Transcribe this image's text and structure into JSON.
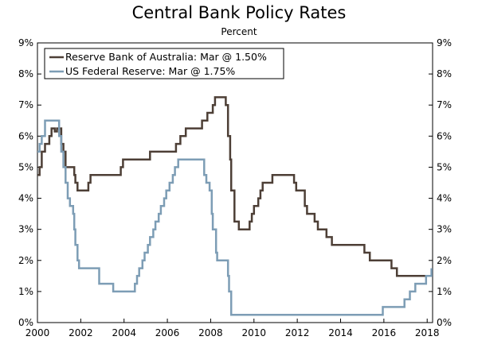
{
  "chart_data": {
    "type": "line",
    "title": "Central Bank Policy Rates",
    "subtitle": "Percent",
    "xlabel": "",
    "ylabel": "",
    "xlim": [
      2000,
      2018.25
    ],
    "ylim": [
      0,
      9
    ],
    "grid": false,
    "legend_position": "top-left",
    "y_ticks": [
      {
        "value": 0,
        "label": "0%"
      },
      {
        "value": 1,
        "label": "1%"
      },
      {
        "value": 2,
        "label": "2%"
      },
      {
        "value": 3,
        "label": "3%"
      },
      {
        "value": 4,
        "label": "4%"
      },
      {
        "value": 5,
        "label": "5%"
      },
      {
        "value": 6,
        "label": "6%"
      },
      {
        "value": 7,
        "label": "7%"
      },
      {
        "value": 8,
        "label": "8%"
      },
      {
        "value": 9,
        "label": "9%"
      }
    ],
    "x_ticks": [
      {
        "value": 2000,
        "label": "2000"
      },
      {
        "value": 2002,
        "label": "2002"
      },
      {
        "value": 2004,
        "label": "2004"
      },
      {
        "value": 2006,
        "label": "2006"
      },
      {
        "value": 2008,
        "label": "2008"
      },
      {
        "value": 2010,
        "label": "2010"
      },
      {
        "value": 2012,
        "label": "2012"
      },
      {
        "value": 2014,
        "label": "2014"
      },
      {
        "value": 2016,
        "label": "2016"
      },
      {
        "value": 2018,
        "label": "2018"
      }
    ],
    "series": [
      {
        "name": "Reserve Bank of Australia: Mar @ 1.50%",
        "color": "#4d3f36",
        "steps": [
          [
            2000.0,
            4.75
          ],
          [
            2000.1,
            5.0
          ],
          [
            2000.2,
            5.5
          ],
          [
            2000.35,
            5.75
          ],
          [
            2000.55,
            6.0
          ],
          [
            2000.65,
            6.25
          ],
          [
            2000.8,
            6.15
          ],
          [
            2000.9,
            6.25
          ],
          [
            2001.1,
            5.75
          ],
          [
            2001.2,
            5.5
          ],
          [
            2001.3,
            5.0
          ],
          [
            2001.7,
            4.75
          ],
          [
            2001.75,
            4.5
          ],
          [
            2001.85,
            4.25
          ],
          [
            2002.35,
            4.5
          ],
          [
            2002.45,
            4.75
          ],
          [
            2003.85,
            5.0
          ],
          [
            2003.95,
            5.25
          ],
          [
            2005.2,
            5.5
          ],
          [
            2006.4,
            5.75
          ],
          [
            2006.6,
            6.0
          ],
          [
            2006.85,
            6.25
          ],
          [
            2007.6,
            6.5
          ],
          [
            2007.85,
            6.75
          ],
          [
            2008.1,
            7.0
          ],
          [
            2008.2,
            7.25
          ],
          [
            2008.7,
            7.0
          ],
          [
            2008.8,
            6.0
          ],
          [
            2008.9,
            5.25
          ],
          [
            2008.95,
            4.25
          ],
          [
            2009.1,
            3.25
          ],
          [
            2009.3,
            3.0
          ],
          [
            2009.8,
            3.25
          ],
          [
            2009.9,
            3.5
          ],
          [
            2010.0,
            3.75
          ],
          [
            2010.2,
            4.0
          ],
          [
            2010.3,
            4.25
          ],
          [
            2010.4,
            4.5
          ],
          [
            2010.85,
            4.75
          ],
          [
            2011.85,
            4.5
          ],
          [
            2011.95,
            4.25
          ],
          [
            2012.35,
            3.75
          ],
          [
            2012.45,
            3.5
          ],
          [
            2012.8,
            3.25
          ],
          [
            2012.95,
            3.0
          ],
          [
            2013.35,
            2.75
          ],
          [
            2013.6,
            2.5
          ],
          [
            2015.1,
            2.25
          ],
          [
            2015.35,
            2.0
          ],
          [
            2016.35,
            1.75
          ],
          [
            2016.6,
            1.5
          ],
          [
            2018.2,
            1.5
          ]
        ]
      },
      {
        "name": "US Federal Reserve: Mar @ 1.75%",
        "color": "#7d9db5",
        "steps": [
          [
            2000.0,
            5.5
          ],
          [
            2000.1,
            5.75
          ],
          [
            2000.2,
            6.0
          ],
          [
            2000.35,
            6.5
          ],
          [
            2001.0,
            6.0
          ],
          [
            2001.1,
            5.5
          ],
          [
            2001.2,
            5.0
          ],
          [
            2001.3,
            4.5
          ],
          [
            2001.4,
            4.0
          ],
          [
            2001.5,
            3.75
          ],
          [
            2001.65,
            3.5
          ],
          [
            2001.7,
            3.0
          ],
          [
            2001.75,
            2.5
          ],
          [
            2001.85,
            2.0
          ],
          [
            2001.92,
            1.75
          ],
          [
            2002.85,
            1.25
          ],
          [
            2003.5,
            1.0
          ],
          [
            2004.5,
            1.25
          ],
          [
            2004.6,
            1.5
          ],
          [
            2004.7,
            1.75
          ],
          [
            2004.85,
            2.0
          ],
          [
            2004.95,
            2.25
          ],
          [
            2005.1,
            2.5
          ],
          [
            2005.2,
            2.75
          ],
          [
            2005.35,
            3.0
          ],
          [
            2005.45,
            3.25
          ],
          [
            2005.6,
            3.5
          ],
          [
            2005.7,
            3.75
          ],
          [
            2005.85,
            4.0
          ],
          [
            2005.95,
            4.25
          ],
          [
            2006.1,
            4.5
          ],
          [
            2006.25,
            4.75
          ],
          [
            2006.35,
            5.0
          ],
          [
            2006.5,
            5.25
          ],
          [
            2007.7,
            4.75
          ],
          [
            2007.8,
            4.5
          ],
          [
            2007.95,
            4.25
          ],
          [
            2008.05,
            3.5
          ],
          [
            2008.1,
            3.0
          ],
          [
            2008.25,
            2.25
          ],
          [
            2008.3,
            2.0
          ],
          [
            2008.8,
            1.5
          ],
          [
            2008.85,
            1.0
          ],
          [
            2008.95,
            0.25
          ],
          [
            2015.95,
            0.5
          ],
          [
            2016.95,
            0.75
          ],
          [
            2017.2,
            1.0
          ],
          [
            2017.45,
            1.25
          ],
          [
            2017.95,
            1.5
          ],
          [
            2018.2,
            1.75
          ]
        ]
      }
    ]
  }
}
